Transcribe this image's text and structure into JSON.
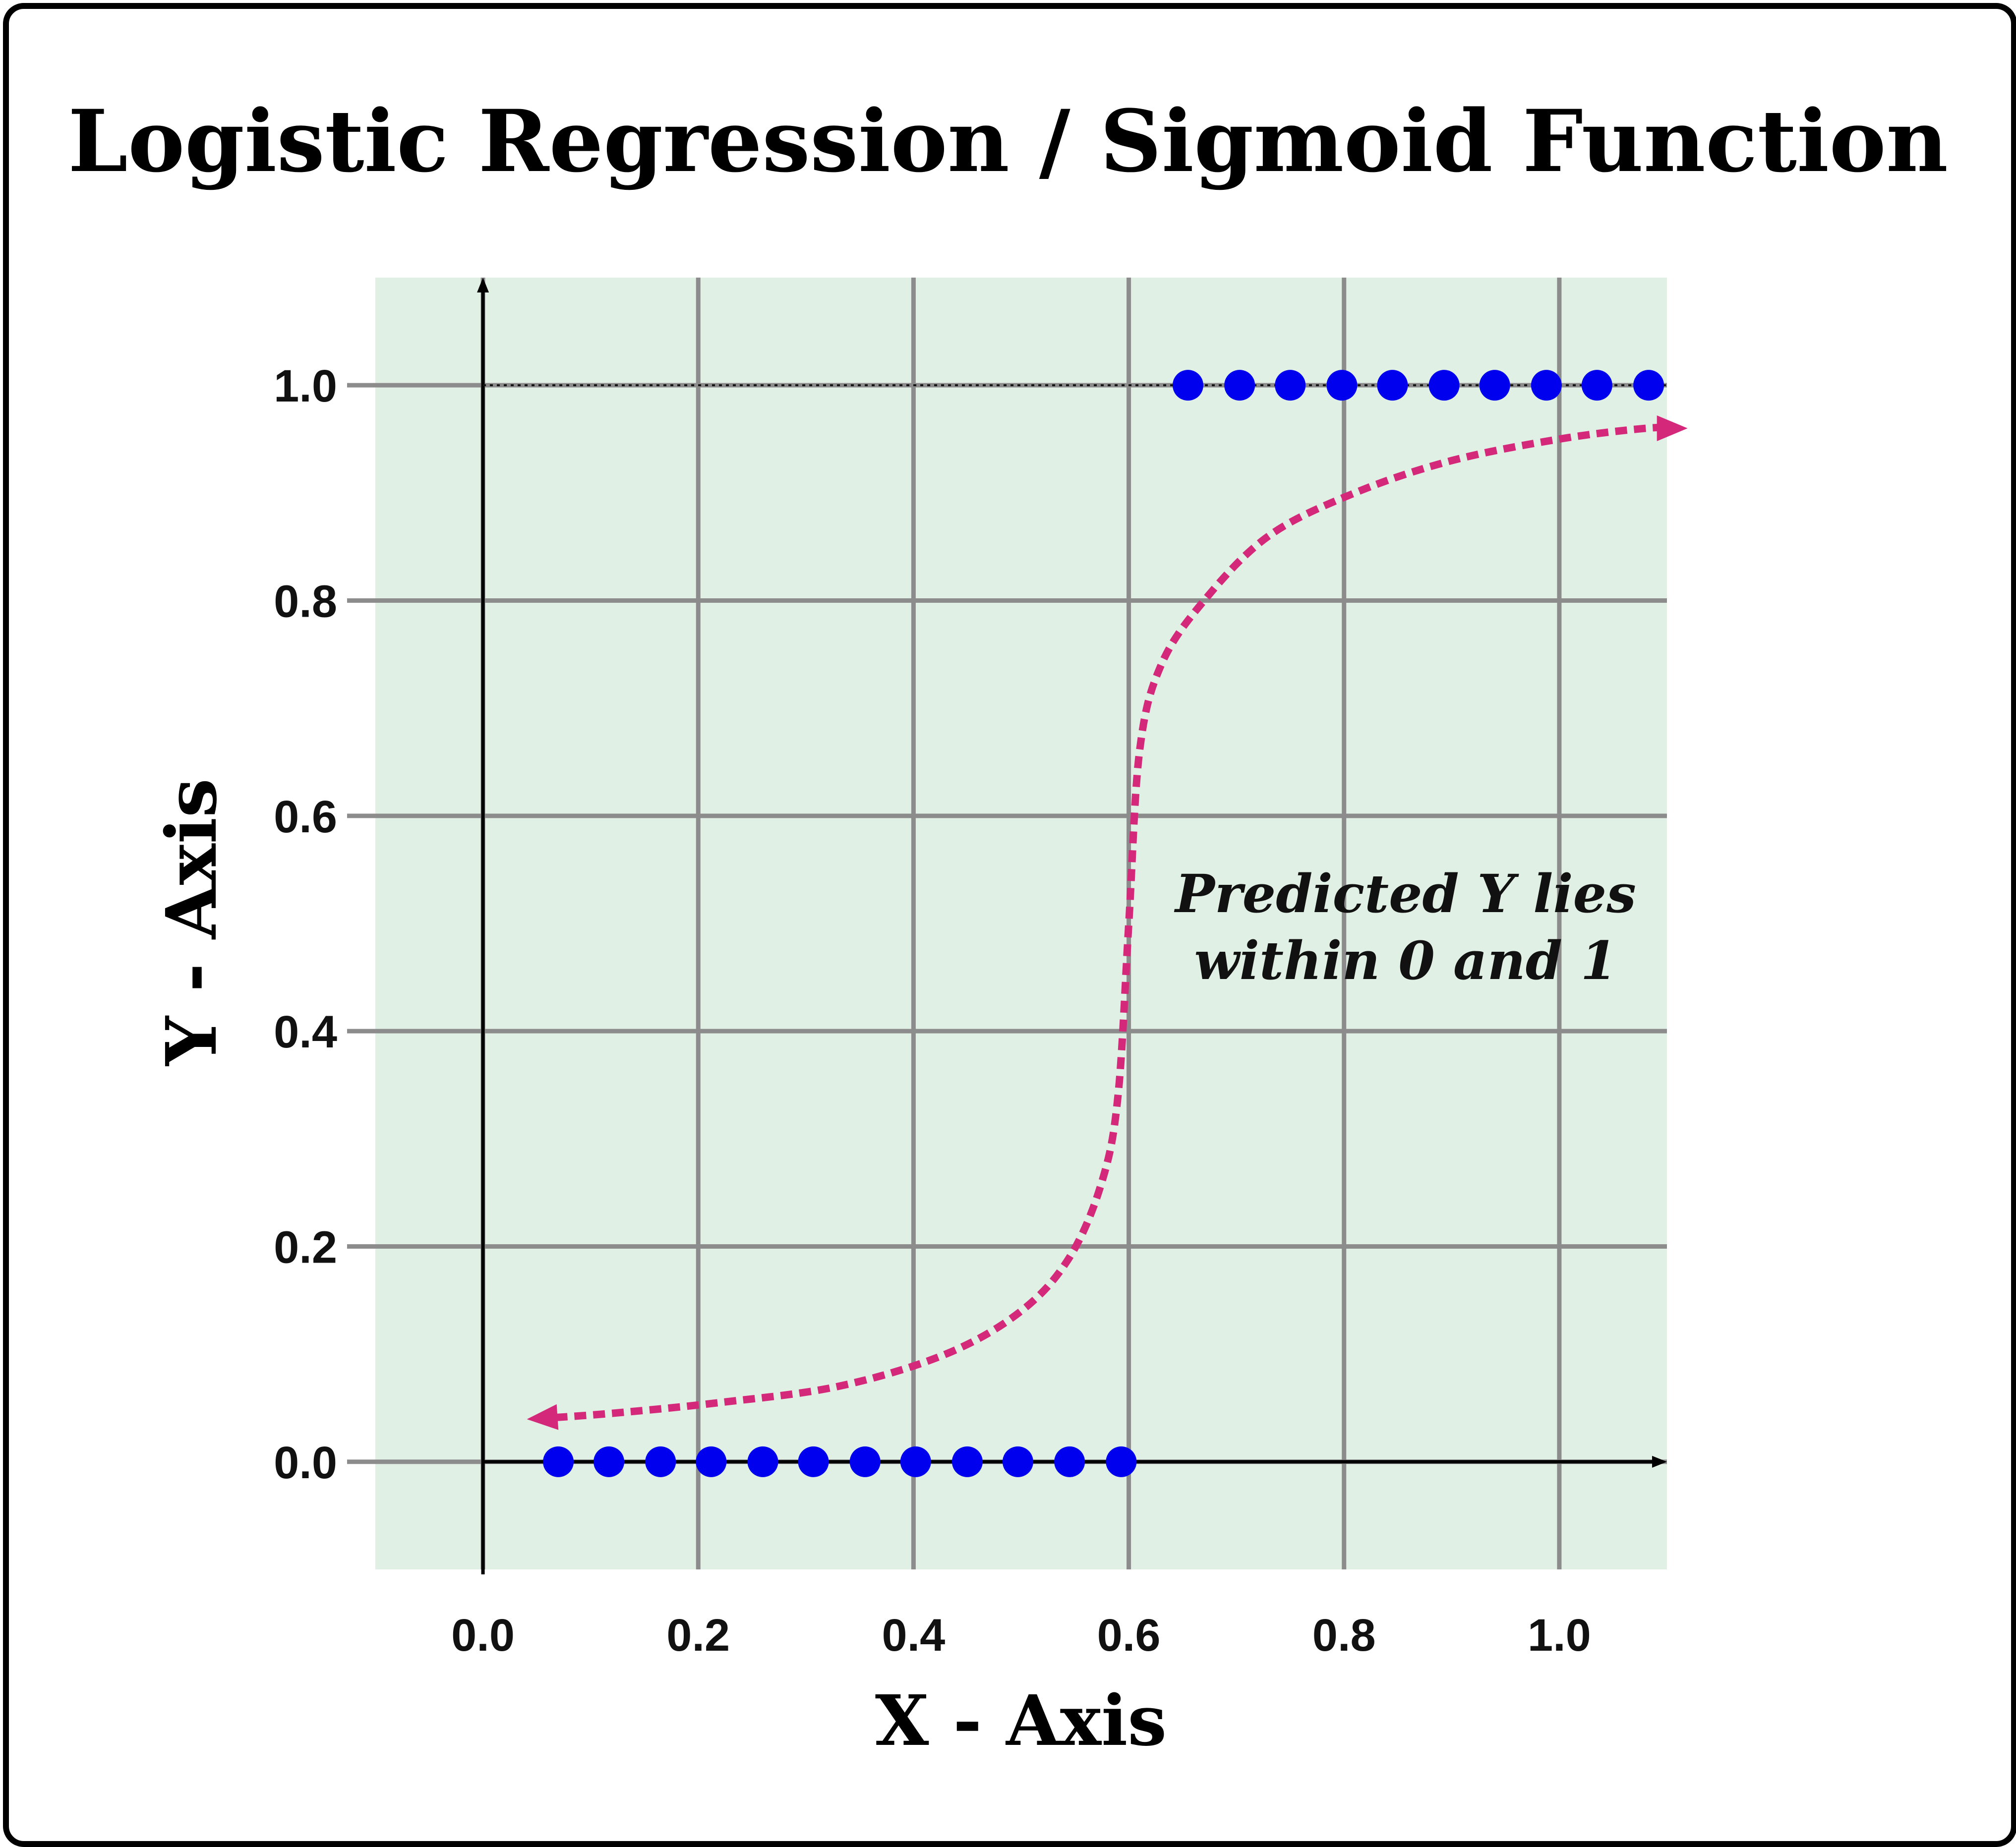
{
  "chart_data": {
    "type": "scatter",
    "title": "Logistic Regression / Sigmoid Function",
    "xlabel": "X - Axis",
    "ylabel": "Y - Axis",
    "xlim": [
      -0.1,
      1.1
    ],
    "ylim": [
      -0.1,
      1.1
    ],
    "xticks": [
      "0.0",
      "0.2",
      "0.4",
      "0.6",
      "0.8",
      "1.0"
    ],
    "yticks": [
      "0.0",
      "0.2",
      "0.4",
      "0.6",
      "0.8",
      "1.0"
    ],
    "grid": true,
    "background_color": "#e1f0e4",
    "annotation": [
      "Predicted Y lies",
      "within 0 and 1"
    ],
    "series": [
      {
        "color": "#0000ee",
        "x": [
          0.07,
          0.117,
          0.165,
          0.212,
          0.26,
          0.307,
          0.355,
          0.402,
          0.45,
          0.497,
          0.545,
          0.593
        ],
        "y": [
          0,
          0,
          0,
          0,
          0,
          0,
          0,
          0,
          0,
          0,
          0,
          0
        ]
      },
      {
        "color": "#0000ee",
        "x": [
          0.655,
          0.703,
          0.75,
          0.798,
          0.845,
          0.893,
          0.94,
          0.988,
          1.035,
          1.083
        ],
        "y": [
          1,
          1,
          1,
          1,
          1,
          1,
          1,
          1,
          1,
          1
        ]
      }
    ],
    "curve": {
      "color": "#d4287a",
      "style": "dotted",
      "x": [
        0.05,
        0.12,
        0.22,
        0.33,
        0.43,
        0.5,
        0.545,
        0.575,
        0.59,
        0.6,
        0.61,
        0.63,
        0.67,
        0.73,
        0.81,
        0.9,
        1.0,
        1.08,
        1.11
      ],
      "y": [
        0.04,
        0.045,
        0.055,
        0.07,
        0.1,
        0.14,
        0.19,
        0.26,
        0.34,
        0.5,
        0.66,
        0.74,
        0.8,
        0.86,
        0.9,
        0.93,
        0.95,
        0.96,
        0.96
      ]
    }
  }
}
